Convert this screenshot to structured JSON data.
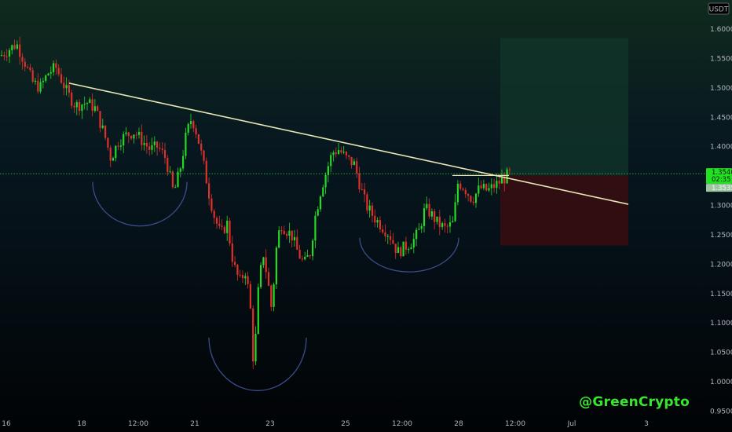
{
  "currency_label": "USDT",
  "watermark": "@GreenCrypto",
  "current_price": "1.3540",
  "countdown": "02:35",
  "secondary_price": "1.3535",
  "colors": {
    "background": "#000000",
    "bull": "#26d926",
    "bear": "#e0302a",
    "trendline": "#e8e6b4",
    "arc": "#3d4d8c",
    "target_zone": "#10352a",
    "stop_zone": "#3a0d10",
    "price_line": "#2ecc2e",
    "axis_text": "#b2b5be"
  },
  "chart_data": {
    "type": "candlestick",
    "y_axis": {
      "min": 0.95,
      "max": 1.6,
      "ticks": [
        "1.6000",
        "1.5500",
        "1.5000",
        "1.4500",
        "1.4000",
        "1.3500",
        "1.3000",
        "1.2500",
        "1.2000",
        "1.1500",
        "1.1000",
        "1.0500",
        "1.0000",
        "0.9500"
      ]
    },
    "x_axis": {
      "ticks": [
        "16",
        "18",
        "12:00",
        "21",
        "23",
        "25",
        "12:00",
        "28",
        "12:00",
        "Jul",
        "3"
      ]
    },
    "price_path_anchors": [
      [
        0,
        1.555
      ],
      [
        10,
        1.565
      ],
      [
        20,
        1.575
      ],
      [
        30,
        1.545
      ],
      [
        40,
        1.51
      ],
      [
        50,
        1.5
      ],
      [
        60,
        1.525
      ],
      [
        70,
        1.535
      ],
      [
        85,
        1.49
      ],
      [
        95,
        1.47
      ],
      [
        110,
        1.475
      ],
      [
        120,
        1.465
      ],
      [
        132,
        1.42
      ],
      [
        140,
        1.38
      ],
      [
        150,
        1.41
      ],
      [
        160,
        1.42
      ],
      [
        170,
        1.425
      ],
      [
        180,
        1.41
      ],
      [
        190,
        1.395
      ],
      [
        200,
        1.4
      ],
      [
        210,
        1.38
      ],
      [
        220,
        1.32
      ],
      [
        228,
        1.36
      ],
      [
        236,
        1.42
      ],
      [
        243,
        1.45
      ],
      [
        250,
        1.42
      ],
      [
        258,
        1.37
      ],
      [
        265,
        1.32
      ],
      [
        272,
        1.28
      ],
      [
        280,
        1.25
      ],
      [
        288,
        1.27
      ],
      [
        296,
        1.2
      ],
      [
        304,
        1.17
      ],
      [
        312,
        1.19
      ],
      [
        318,
        1.12
      ],
      [
        322,
        1.02
      ],
      [
        328,
        1.16
      ],
      [
        334,
        1.22
      ],
      [
        340,
        1.17
      ],
      [
        345,
        1.12
      ],
      [
        350,
        1.22
      ],
      [
        356,
        1.27
      ],
      [
        362,
        1.26
      ],
      [
        370,
        1.25
      ],
      [
        378,
        1.22
      ],
      [
        386,
        1.2
      ],
      [
        394,
        1.22
      ],
      [
        400,
        1.28
      ],
      [
        408,
        1.33
      ],
      [
        415,
        1.36
      ],
      [
        422,
        1.39
      ],
      [
        430,
        1.395
      ],
      [
        440,
        1.38
      ],
      [
        450,
        1.37
      ],
      [
        458,
        1.33
      ],
      [
        465,
        1.3
      ],
      [
        475,
        1.28
      ],
      [
        485,
        1.265
      ],
      [
        495,
        1.25
      ],
      [
        505,
        1.22
      ],
      [
        515,
        1.23
      ],
      [
        525,
        1.24
      ],
      [
        532,
        1.255
      ],
      [
        540,
        1.295
      ],
      [
        548,
        1.285
      ],
      [
        556,
        1.27
      ],
      [
        566,
        1.26
      ],
      [
        576,
        1.27
      ],
      [
        582,
        1.34
      ],
      [
        590,
        1.33
      ],
      [
        600,
        1.31
      ],
      [
        610,
        1.33
      ],
      [
        620,
        1.325
      ],
      [
        630,
        1.335
      ],
      [
        640,
        1.345
      ],
      [
        648,
        1.355
      ]
    ],
    "trendline": {
      "from": [
        88,
        1.508
      ],
      "to": [
        800,
        1.302
      ]
    },
    "current_price": 1.354,
    "entry_range": [
      576,
      648
    ],
    "entry_level": 1.351,
    "target_zone": {
      "x_range": [
        637,
        800
      ],
      "top": 1.585,
      "bottom": 1.351
    },
    "stop_zone": {
      "x_range": [
        637,
        800
      ],
      "top": 1.351,
      "bottom": 1.232
    },
    "pattern_arcs": [
      {
        "label": "left-shoulder",
        "x_range": [
          118,
          238
        ],
        "top": 1.34,
        "bottom": 1.265
      },
      {
        "label": "head",
        "x_range": [
          266,
          390
        ],
        "top": 1.075,
        "bottom": 0.985
      },
      {
        "label": "right-shoulder",
        "x_range": [
          458,
          584
        ],
        "top": 1.245,
        "bottom": 1.187
      }
    ]
  }
}
